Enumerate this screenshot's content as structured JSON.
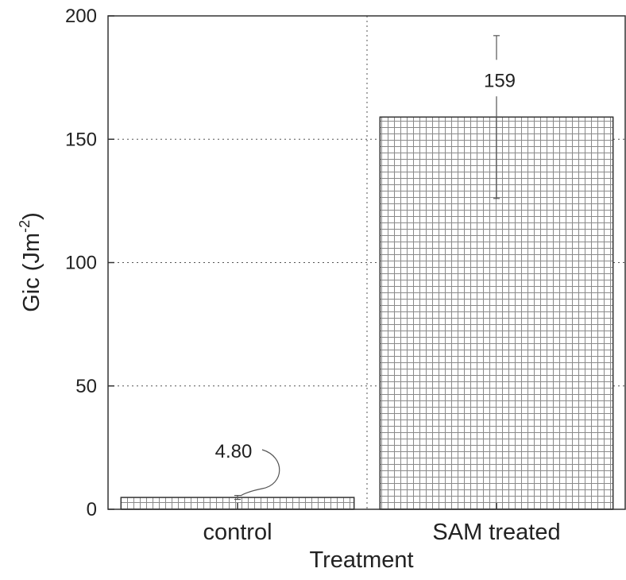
{
  "chart_data": {
    "type": "bar",
    "categories": [
      "control",
      "SAM treated"
    ],
    "values": [
      4.8,
      159
    ],
    "error_bars": [
      {
        "low": 4.0,
        "high": 5.6
      },
      {
        "low": 126,
        "high": 192
      }
    ],
    "data_labels": [
      "4.80",
      "159"
    ],
    "xlabel": "Treatment",
    "ylabel": {
      "base": "Gic (Jm",
      "sup": "-2",
      "close": ")"
    },
    "ylim": [
      0,
      200
    ],
    "yticks": [
      0,
      50,
      100,
      150,
      200
    ],
    "ytick_labels": [
      "0",
      "50",
      "100",
      "150",
      "200"
    ],
    "grid": true,
    "bar_pattern": "crosshatch",
    "colors": {
      "bar_fill": "#ffffff",
      "hatch": "#8a8a8a",
      "grid": "#555555",
      "axis": "#333333"
    }
  }
}
